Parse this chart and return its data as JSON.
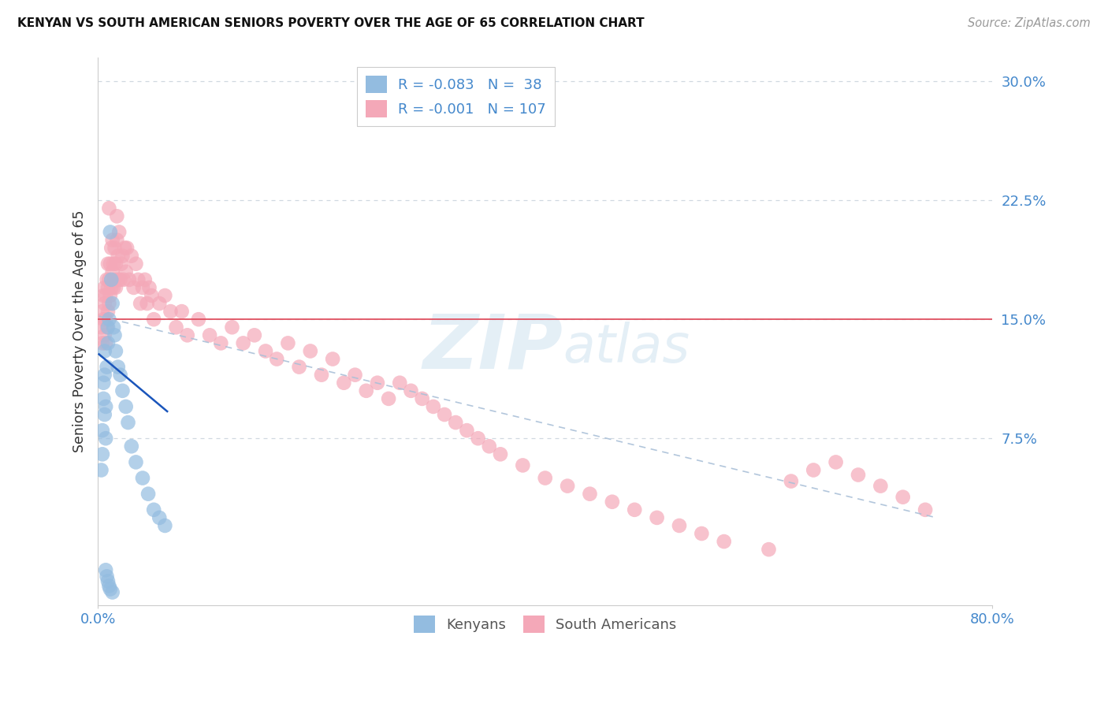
{
  "title": "KENYAN VS SOUTH AMERICAN SENIORS POVERTY OVER THE AGE OF 65 CORRELATION CHART",
  "source": "Source: ZipAtlas.com",
  "ylabel": "Seniors Poverty Over the Age of 65",
  "xlim": [
    0.0,
    0.8
  ],
  "ylim": [
    -0.03,
    0.315
  ],
  "horizontal_line_y": 0.15,
  "kenyan_R": -0.083,
  "kenyan_N": 38,
  "sa_R": -0.001,
  "sa_N": 107,
  "kenyan_color": "#93bce0",
  "sa_color": "#f4a8b8",
  "kenyan_trend_color": "#1a55bb",
  "sa_trend_color": "#aac0d8",
  "horizontal_line_color": "#e05060",
  "axis_color": "#4488cc",
  "watermark_color": "#cfe2f0",
  "kenyan_x": [
    0.003,
    0.004,
    0.004,
    0.005,
    0.005,
    0.006,
    0.006,
    0.006,
    0.007,
    0.007,
    0.008,
    0.009,
    0.009,
    0.01,
    0.011,
    0.012,
    0.013,
    0.014,
    0.015,
    0.016,
    0.018,
    0.02,
    0.022,
    0.025,
    0.027,
    0.03,
    0.034,
    0.04,
    0.045,
    0.05,
    0.055,
    0.06,
    0.007,
    0.008,
    0.009,
    0.01,
    0.011,
    0.013
  ],
  "kenyan_y": [
    0.055,
    0.065,
    0.08,
    0.1,
    0.11,
    0.09,
    0.115,
    0.13,
    0.075,
    0.095,
    0.12,
    0.135,
    0.145,
    0.15,
    0.205,
    0.175,
    0.16,
    0.145,
    0.14,
    0.13,
    0.12,
    0.115,
    0.105,
    0.095,
    0.085,
    0.07,
    0.06,
    0.05,
    0.04,
    0.03,
    0.025,
    0.02,
    -0.008,
    -0.012,
    -0.015,
    -0.018,
    -0.02,
    -0.022
  ],
  "sa_x": [
    0.003,
    0.004,
    0.004,
    0.005,
    0.005,
    0.006,
    0.006,
    0.006,
    0.007,
    0.007,
    0.007,
    0.008,
    0.008,
    0.009,
    0.009,
    0.009,
    0.01,
    0.01,
    0.01,
    0.011,
    0.011,
    0.012,
    0.012,
    0.013,
    0.013,
    0.014,
    0.014,
    0.015,
    0.015,
    0.016,
    0.016,
    0.017,
    0.017,
    0.018,
    0.018,
    0.019,
    0.02,
    0.021,
    0.022,
    0.023,
    0.024,
    0.025,
    0.026,
    0.028,
    0.03,
    0.032,
    0.034,
    0.036,
    0.038,
    0.04,
    0.042,
    0.044,
    0.046,
    0.048,
    0.05,
    0.055,
    0.06,
    0.065,
    0.07,
    0.075,
    0.08,
    0.09,
    0.1,
    0.11,
    0.12,
    0.13,
    0.14,
    0.15,
    0.16,
    0.17,
    0.18,
    0.19,
    0.2,
    0.21,
    0.22,
    0.23,
    0.24,
    0.25,
    0.26,
    0.27,
    0.28,
    0.29,
    0.3,
    0.31,
    0.32,
    0.33,
    0.34,
    0.35,
    0.36,
    0.38,
    0.4,
    0.42,
    0.44,
    0.46,
    0.48,
    0.5,
    0.52,
    0.54,
    0.56,
    0.6,
    0.62,
    0.64,
    0.66,
    0.68,
    0.7,
    0.72,
    0.74
  ],
  "sa_y": [
    0.145,
    0.135,
    0.155,
    0.15,
    0.165,
    0.14,
    0.16,
    0.17,
    0.135,
    0.15,
    0.165,
    0.145,
    0.175,
    0.155,
    0.17,
    0.185,
    0.16,
    0.175,
    0.22,
    0.165,
    0.185,
    0.17,
    0.195,
    0.18,
    0.2,
    0.17,
    0.185,
    0.175,
    0.195,
    0.17,
    0.185,
    0.2,
    0.215,
    0.175,
    0.19,
    0.205,
    0.175,
    0.185,
    0.19,
    0.175,
    0.195,
    0.18,
    0.195,
    0.175,
    0.19,
    0.17,
    0.185,
    0.175,
    0.16,
    0.17,
    0.175,
    0.16,
    0.17,
    0.165,
    0.15,
    0.16,
    0.165,
    0.155,
    0.145,
    0.155,
    0.14,
    0.15,
    0.14,
    0.135,
    0.145,
    0.135,
    0.14,
    0.13,
    0.125,
    0.135,
    0.12,
    0.13,
    0.115,
    0.125,
    0.11,
    0.115,
    0.105,
    0.11,
    0.1,
    0.11,
    0.105,
    0.1,
    0.095,
    0.09,
    0.085,
    0.08,
    0.075,
    0.07,
    0.065,
    0.058,
    0.05,
    0.045,
    0.04,
    0.035,
    0.03,
    0.025,
    0.02,
    0.015,
    0.01,
    0.005,
    0.048,
    0.055,
    0.06,
    0.052,
    0.045,
    0.038,
    0.03
  ],
  "kenyan_trend_x": [
    0.001,
    0.062
  ],
  "kenyan_trend_y": [
    0.128,
    0.092
  ],
  "sa_trend_x": [
    0.001,
    0.75
  ],
  "sa_trend_y": [
    0.152,
    0.025
  ]
}
